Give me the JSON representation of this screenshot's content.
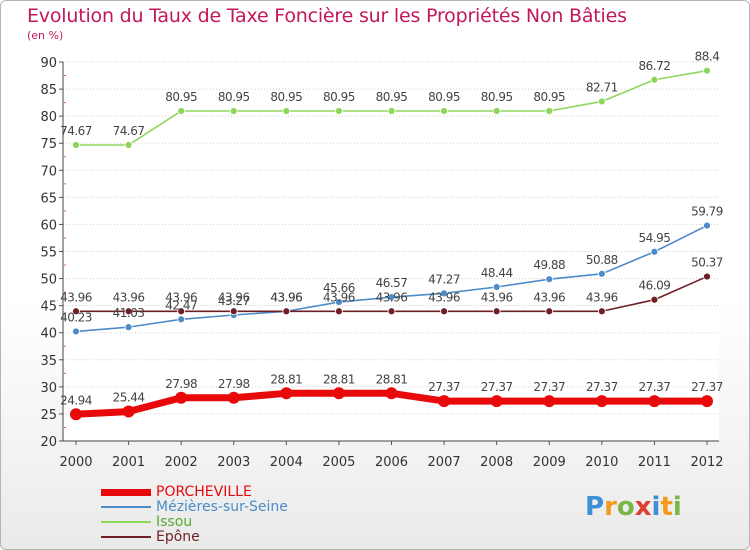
{
  "title": "Evolution du Taux de Taxe Foncière sur les Propriétés Non Bâties",
  "unit_label": "(en %)",
  "logo": {
    "text": "Proxiti",
    "colors": [
      "#3d8fd6",
      "#f29a1d",
      "#7ab648",
      "#e23e2f",
      "#3d8fd6",
      "#f29a1d",
      "#7ab648"
    ]
  },
  "chart_data": {
    "type": "line",
    "title": "Evolution du Taux de Taxe Foncière sur les Propriétés Non Bâties",
    "ylabel": "(en %)",
    "xlabel": "",
    "ylim": [
      20,
      90
    ],
    "yticks": [
      20,
      25,
      30,
      35,
      40,
      45,
      50,
      55,
      60,
      65,
      70,
      75,
      80,
      85,
      90
    ],
    "grid": "horizontal dotted",
    "legend": "bottom-left",
    "categories": [
      "2000",
      "2001",
      "2002",
      "2003",
      "2004",
      "2005",
      "2006",
      "2007",
      "2008",
      "2009",
      "2010",
      "2011",
      "2012"
    ],
    "series": [
      {
        "name": "PORCHEVILLE",
        "color": "#e8090b",
        "values": [
          24.94,
          25.44,
          27.98,
          27.98,
          28.81,
          28.81,
          28.81,
          27.37,
          27.37,
          27.37,
          27.37,
          27.37,
          27.37
        ]
      },
      {
        "name": "Mézières-sur-Seine",
        "color": "#4d8cc8",
        "values": [
          40.23,
          41.03,
          42.47,
          43.27,
          43.96,
          45.66,
          46.57,
          47.27,
          48.44,
          49.88,
          50.88,
          54.95,
          59.79
        ]
      },
      {
        "name": "Issou",
        "color": "#8ed65a",
        "values": [
          74.67,
          74.67,
          80.95,
          80.95,
          80.95,
          80.95,
          80.95,
          80.95,
          80.95,
          80.95,
          82.71,
          86.72,
          88.4
        ]
      },
      {
        "name": "Epône",
        "color": "#6e1f24",
        "values": [
          43.96,
          43.96,
          43.96,
          43.96,
          43.96,
          43.96,
          43.96,
          43.96,
          43.96,
          43.96,
          43.96,
          46.09,
          50.37
        ]
      }
    ],
    "data_labels": [
      [
        "24.94",
        "25.44",
        "27.98",
        "27.98",
        "28.81",
        "28.81",
        "28.81",
        "27.37",
        "27.37",
        "27.37",
        "27.37",
        "27.37",
        "27.37"
      ],
      [
        "40.23",
        "41.03",
        "42.47",
        "43.27",
        "43.96",
        "45.66",
        "46.57",
        "47.27",
        "48.44",
        "49.88",
        "50.88",
        "54.95",
        "59.79"
      ],
      [
        "74.67",
        "74.67",
        "80.95",
        "80.95",
        "80.95",
        "80.95",
        "80.95",
        "80.95",
        "80.95",
        "80.95",
        "82.71",
        "86.72",
        "88.4"
      ],
      [
        "43.96",
        "43.96",
        "43.96",
        "43.96",
        "43.96",
        "43.96",
        "43.96",
        "43.96",
        "43.96",
        "43.96",
        "43.96",
        "46.09",
        "50.37"
      ]
    ]
  }
}
